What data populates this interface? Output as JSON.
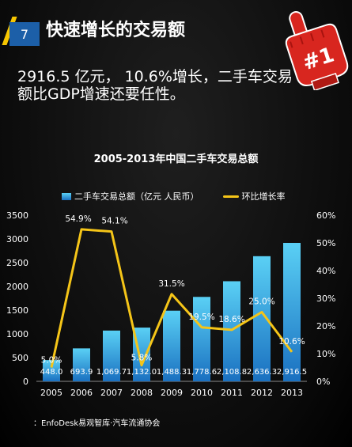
{
  "header": {
    "page_number": "7",
    "title": "快速增长的交易额"
  },
  "badge": {
    "text": "#1"
  },
  "body": {
    "line1": "2916.5 亿元， 10.6%增长，二手车交易",
    "line2": "额比GDP增速还要任性。"
  },
  "footer": {
    "source": "：EnfoDesk易观智库·汽车流通协会"
  },
  "colors": {
    "bar_top": "#5ad0f5",
    "bar_bottom": "#1a70c0",
    "line": "#f5c518",
    "page_tab": "#1c5fa8",
    "hand": "#d8261f"
  },
  "chart_data": {
    "type": "bar",
    "title": "2005-2013年中国二手车交易总额",
    "categories": [
      "2005",
      "2006",
      "2007",
      "2008",
      "2009",
      "2010",
      "2011",
      "2012",
      "2013"
    ],
    "series": [
      {
        "name": "二手车交易总额（亿元 人民币）",
        "type": "bar",
        "axis": "left",
        "values": [
          448.0,
          693.9,
          1069.7,
          1132.0,
          1488.3,
          1778.6,
          2108.8,
          2636.3,
          2916.5
        ],
        "labels": [
          "448.0",
          "693.9",
          "1,069.7",
          "1,132.0",
          "1,488.3",
          "1,778.6",
          "2,108.8",
          "2,636.3",
          "2,916.5"
        ]
      },
      {
        "name": "环比增长率",
        "type": "line",
        "axis": "right",
        "values": [
          5.0,
          54.9,
          54.1,
          5.8,
          31.5,
          19.5,
          18.6,
          25.0,
          10.6
        ],
        "labels": [
          "5.0%",
          "54.9%",
          "54.1%",
          "5.8%",
          "31.5%",
          "19.5%",
          "18.6%",
          "25.0%",
          "10.6%"
        ]
      }
    ],
    "y_left": {
      "ticks": [
        "0",
        "500",
        "1000",
        "1500",
        "2000",
        "2500",
        "3000",
        "3500"
      ],
      "range": [
        0,
        3500
      ]
    },
    "y_right": {
      "ticks": [
        "0%",
        "10%",
        "20%",
        "30%",
        "40%",
        "50%",
        "60%"
      ],
      "range": [
        0,
        60
      ]
    },
    "legend": "top",
    "grid": false
  }
}
